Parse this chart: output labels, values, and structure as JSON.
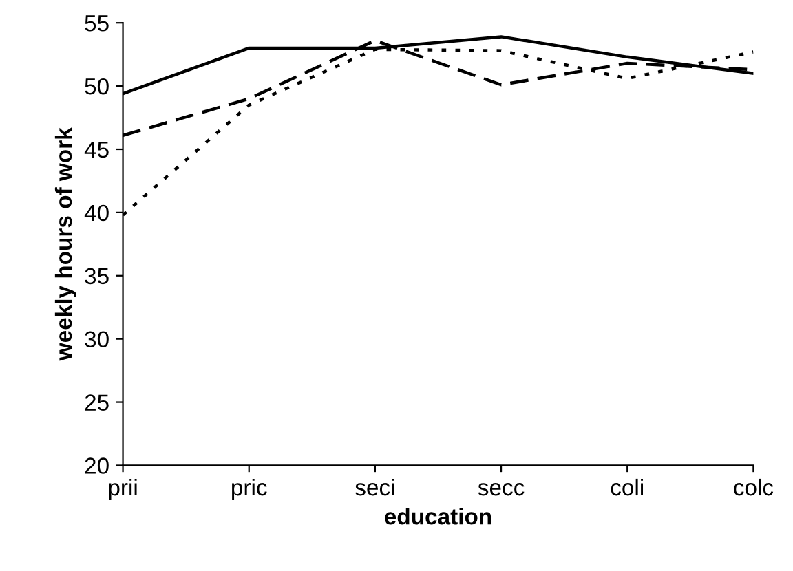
{
  "chart_data": {
    "type": "line",
    "xlabel": "education",
    "ylabel": "weekly hours of work",
    "categories": [
      "prii",
      "pric",
      "seci",
      "secc",
      "coli",
      "colc"
    ],
    "series": [
      {
        "color": "#000000",
        "line_style": "solid",
        "values": [
          49.4,
          53.0,
          53.0,
          53.9,
          52.3,
          51.0
        ]
      },
      {
        "color": "#000000",
        "line_style": "dashed",
        "values": [
          46.1,
          49.0,
          53.6,
          50.1,
          51.8,
          51.3
        ]
      },
      {
        "color": "#000000",
        "line_style": "dotted",
        "values": [
          39.8,
          48.5,
          52.9,
          52.8,
          50.6,
          52.7
        ]
      }
    ],
    "ylim": [
      20,
      55
    ],
    "yticks": [
      20,
      25,
      30,
      35,
      40,
      45,
      50,
      55
    ],
    "grid": false,
    "legend": false,
    "marker": "none"
  }
}
